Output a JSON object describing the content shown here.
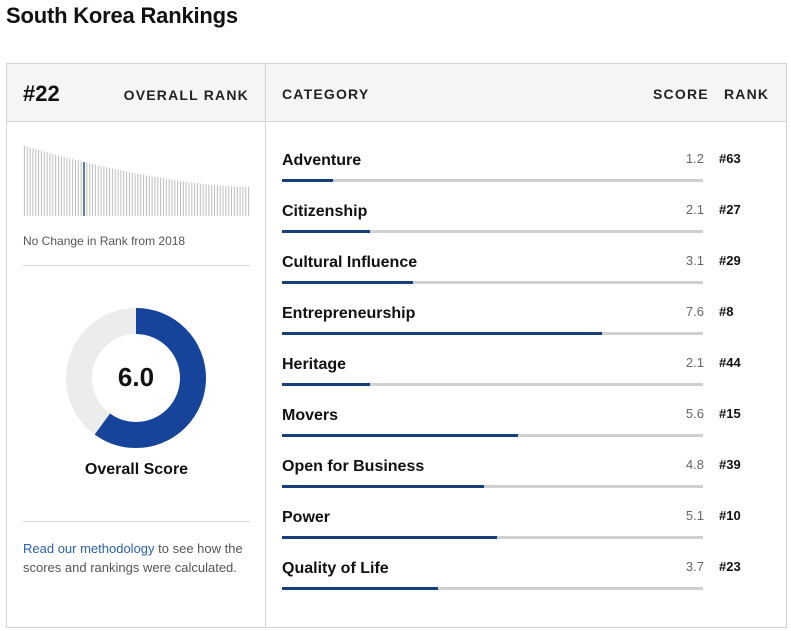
{
  "page": {
    "title": "South Korea Rankings"
  },
  "overall": {
    "rank": "#22",
    "rank_label": "OVERALL RANK",
    "change_text": "No Change in Rank from 2018",
    "score": 6.0,
    "score_text": "6.0",
    "score_label": "Overall Score",
    "score_max": 10
  },
  "methodology": {
    "link_text": "Read our methodology",
    "rest_text": " to see how the scores and rankings were calculated."
  },
  "table": {
    "headers": {
      "category": "CATEGORY",
      "score": "SCORE",
      "rank": "RANK"
    },
    "score_max": 10,
    "rows": [
      {
        "name": "Adventure",
        "score": "1.2",
        "rank": "#63"
      },
      {
        "name": "Citizenship",
        "score": "2.1",
        "rank": "#27"
      },
      {
        "name": "Cultural Influence",
        "score": "3.1",
        "rank": "#29"
      },
      {
        "name": "Entrepreneurship",
        "score": "7.6",
        "rank": "#8"
      },
      {
        "name": "Heritage",
        "score": "2.1",
        "rank": "#44"
      },
      {
        "name": "Movers",
        "score": "5.6",
        "rank": "#15"
      },
      {
        "name": "Open for Business",
        "score": "4.8",
        "rank": "#39"
      },
      {
        "name": "Power",
        "score": "5.1",
        "rank": "#10"
      },
      {
        "name": "Quality of Life",
        "score": "3.7",
        "rank": "#23"
      }
    ]
  },
  "sparkline": {
    "total_countries": 80,
    "highlight_position": 22,
    "bar_color": "#bdbdbd",
    "highlight_color": "#17407a"
  },
  "colors": {
    "accent": "#17407a",
    "donut": "#17449b",
    "donut_track": "#ececec",
    "link": "#2a62a7"
  }
}
